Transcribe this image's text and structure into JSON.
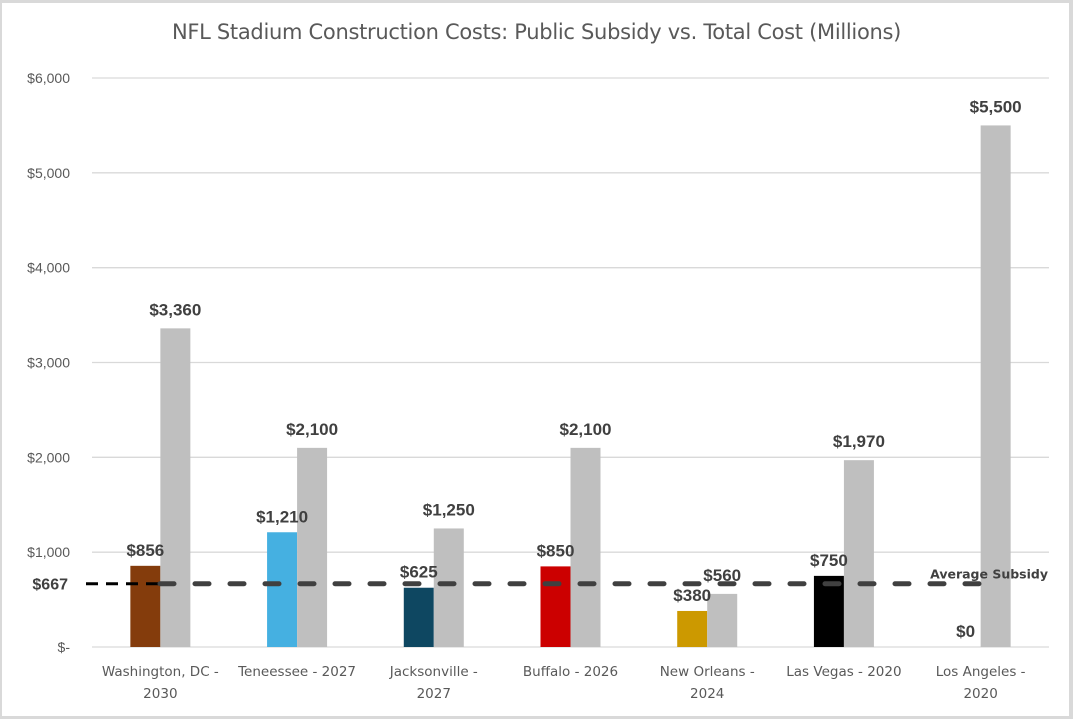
{
  "chart_data": {
    "type": "bar",
    "title": "NFL Stadium Construction Costs: Public Subsidy vs. Total Cost (Millions)",
    "xlabel": "",
    "ylabel": "",
    "ylim": [
      0,
      6000
    ],
    "yticks": [
      0,
      1000,
      2000,
      3000,
      4000,
      5000,
      6000
    ],
    "ytick_labels": [
      "$-",
      "$1,000",
      "$2,000",
      "$3,000",
      "$4,000",
      "$5,000",
      "$6,000"
    ],
    "grid": true,
    "categories": [
      [
        "Washington, DC -",
        "2030"
      ],
      [
        "Teneessee - 2027"
      ],
      [
        "Jacksonville -",
        "2027"
      ],
      [
        "Buffalo - 2026"
      ],
      [
        "New Orleans -",
        "2024"
      ],
      [
        "Las Vegas - 2020"
      ],
      [
        "Los Angeles -",
        "2020"
      ]
    ],
    "series": [
      {
        "name": "Public Subsidy",
        "values": [
          856,
          1210,
          625,
          850,
          380,
          750,
          0
        ],
        "labels": [
          "$856",
          "$1,210",
          "$625",
          "$850",
          "$380",
          "$750",
          "$0"
        ],
        "colors": [
          "#843c0c",
          "#45b0e1",
          "#0e4761",
          "#cc0000",
          "#cc9900",
          "#000000",
          "#bfbfbf"
        ]
      },
      {
        "name": "Total Cost",
        "values": [
          3360,
          2100,
          1250,
          2100,
          560,
          1970,
          5500
        ],
        "labels": [
          "$3,360",
          "$2,100",
          "$1,250",
          "$2,100",
          "$560",
          "$1,970",
          "$5,500"
        ],
        "color": "#bfbfbf"
      }
    ],
    "average_line": {
      "value": 667,
      "label": "$667",
      "annotation": "Average Subsidy",
      "color": "#404040"
    }
  }
}
